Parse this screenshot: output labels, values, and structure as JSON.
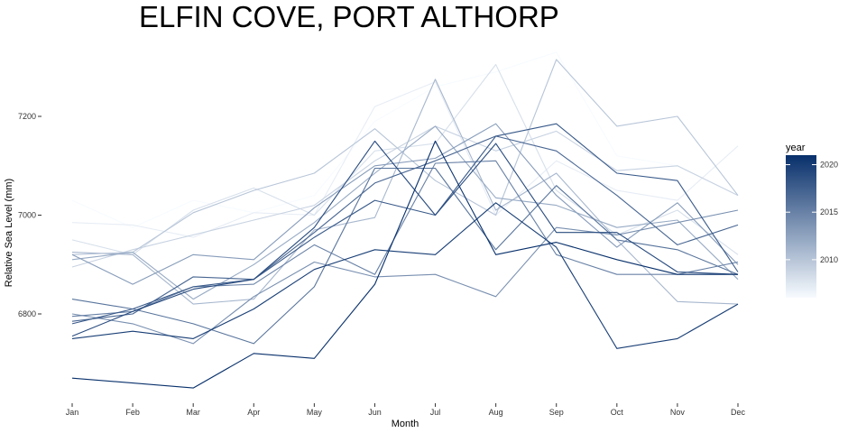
{
  "chart_data": {
    "type": "line",
    "title": "ELFIN COVE, PORT ALTHORP",
    "xlabel": "Month",
    "ylabel": "Relative Sea Level (mm)",
    "categories": [
      "Jan",
      "Feb",
      "Mar",
      "Apr",
      "May",
      "Jun",
      "Jul",
      "Aug",
      "Sep",
      "Oct",
      "Nov",
      "Dec"
    ],
    "y_ticks": [
      6800,
      7000,
      7200
    ],
    "y_tick_labels": [
      "6800",
      "7000",
      "7200"
    ],
    "ylim": [
      6640,
      7335
    ],
    "grid": false,
    "legend": {
      "title": "year",
      "placement": "right",
      "type": "colorbar",
      "ticks": [
        2010,
        2015,
        2020
      ],
      "tick_labels": [
        "2010",
        "2015",
        "2020"
      ],
      "range": [
        2006,
        2021
      ],
      "color_low": "#f7fbff",
      "color_high": "#08306b"
    },
    "series": [
      {
        "year": 2006,
        "values": [
          7030,
          6975,
          7030,
          7005,
          7040,
          7190,
          7260,
          7290,
          7330,
          7120,
          7100,
          7040
        ]
      },
      {
        "year": 2007,
        "values": [
          6985,
          6980,
          6955,
          7005,
          7000,
          7220,
          7270,
          7000,
          7110,
          7050,
          7030,
          7140
        ]
      },
      {
        "year": 2008,
        "values": [
          6950,
          6920,
          7010,
          7055,
          7000,
          7130,
          7145,
          7305,
          7050,
          6960,
          7010,
          6920
        ]
      },
      {
        "year": 2009,
        "values": [
          6895,
          6930,
          6960,
          6990,
          7020,
          7110,
          7180,
          7130,
          7170,
          7090,
          7100,
          7040
        ]
      },
      {
        "year": 2010,
        "values": [
          6920,
          6925,
          7005,
          7050,
          7085,
          7175,
          7070,
          7000,
          7315,
          7180,
          7200,
          7040
        ]
      },
      {
        "year": 2011,
        "values": [
          6925,
          6920,
          6820,
          6830,
          6970,
          6995,
          7275,
          7010,
          7085,
          6950,
          6825,
          6820
        ]
      },
      {
        "year": 2012,
        "values": [
          6910,
          6925,
          6830,
          6900,
          6985,
          7085,
          7180,
          7035,
          7020,
          6975,
          6990,
          6870
        ]
      },
      {
        "year": 2013,
        "values": [
          6920,
          6860,
          6920,
          6910,
          7015,
          7100,
          7115,
          7185,
          7040,
          6935,
          7025,
          6900
        ]
      },
      {
        "year": 2014,
        "values": [
          6800,
          6780,
          6740,
          6835,
          6905,
          6875,
          6880,
          6835,
          6975,
          6960,
          6985,
          7010
        ]
      },
      {
        "year": 2015,
        "values": [
          6795,
          6805,
          6855,
          6860,
          6940,
          6880,
          7105,
          7110,
          6920,
          6880,
          6880,
          6905
        ]
      },
      {
        "year": 2016,
        "values": [
          6830,
          6810,
          6780,
          6740,
          6855,
          7095,
          7095,
          6930,
          7060,
          6950,
          6930,
          6880
        ]
      },
      {
        "year": 2017,
        "values": [
          6785,
          6800,
          6875,
          6870,
          6965,
          7065,
          7110,
          7160,
          7130,
          7040,
          6940,
          6980
        ]
      },
      {
        "year": 2018,
        "values": [
          6780,
          6810,
          6855,
          6870,
          6955,
          7030,
          7000,
          7160,
          7185,
          7085,
          7070,
          6885
        ]
      },
      {
        "year": 2019,
        "values": [
          6755,
          6805,
          6850,
          6870,
          6975,
          7150,
          7000,
          7145,
          6965,
          6965,
          6885,
          6880
        ]
      },
      {
        "year": 2020,
        "values": [
          6750,
          6765,
          6750,
          6810,
          6890,
          6930,
          6920,
          7025,
          6935,
          6730,
          6750,
          6820
        ]
      },
      {
        "year": 2021,
        "values": [
          6670,
          6660,
          6650,
          6720,
          6710,
          6860,
          7150,
          6920,
          6945,
          6910,
          6880,
          6880
        ]
      }
    ]
  }
}
